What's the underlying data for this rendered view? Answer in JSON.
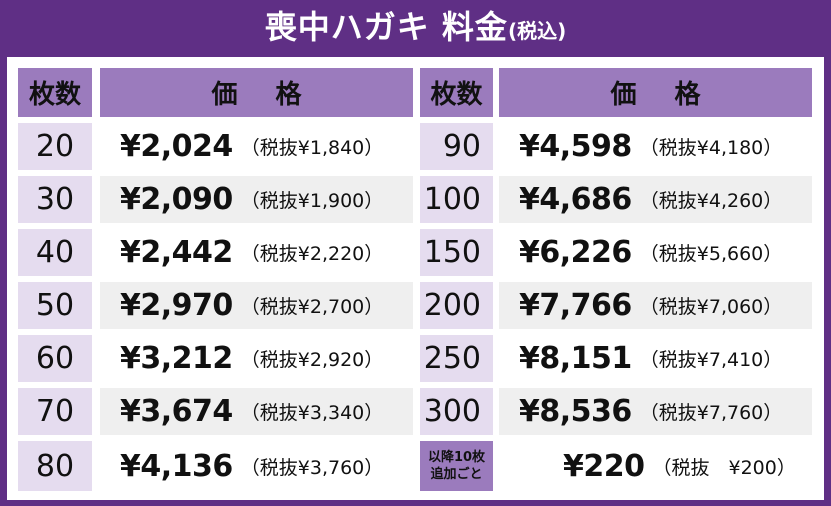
{
  "title": {
    "main": "喪中ハガキ 料金",
    "tax_note": "(税込)"
  },
  "headers": {
    "count": "枚数",
    "price_a": "価",
    "price_b": "格"
  },
  "left_rows": [
    {
      "count": "20",
      "price": "¥2,024",
      "excl": "（税抜¥1,840）"
    },
    {
      "count": "30",
      "price": "¥2,090",
      "excl": "（税抜¥1,900）"
    },
    {
      "count": "40",
      "price": "¥2,442",
      "excl": "（税抜¥2,220）"
    },
    {
      "count": "50",
      "price": "¥2,970",
      "excl": "（税抜¥2,700）"
    },
    {
      "count": "60",
      "price": "¥3,212",
      "excl": "（税抜¥2,920）"
    },
    {
      "count": "70",
      "price": "¥3,674",
      "excl": "（税抜¥3,340）"
    },
    {
      "count": "80",
      "price": "¥4,136",
      "excl": "（税抜¥3,760）"
    }
  ],
  "right_rows": [
    {
      "count": "90",
      "price": "¥4,598",
      "excl": "（税抜¥4,180）"
    },
    {
      "count": "100",
      "price": "¥4,686",
      "excl": "（税抜¥4,260）"
    },
    {
      "count": "150",
      "price": "¥6,226",
      "excl": "（税抜¥5,660）"
    },
    {
      "count": "200",
      "price": "¥7,766",
      "excl": "（税抜¥7,060）"
    },
    {
      "count": "250",
      "price": "¥8,151",
      "excl": "（税抜¥7,410）"
    },
    {
      "count": "300",
      "price": "¥8,536",
      "excl": "（税抜¥7,760）"
    }
  ],
  "extra_row": {
    "label_line1": "以降10枚",
    "label_line2": "追加ごと",
    "price": "¥220",
    "excl": "（税抜　¥200）"
  },
  "colors": {
    "frame": "#5f2f85",
    "header": "#9b7bbd",
    "count_cell": "#e5dcef",
    "stripe": "#efefef"
  }
}
